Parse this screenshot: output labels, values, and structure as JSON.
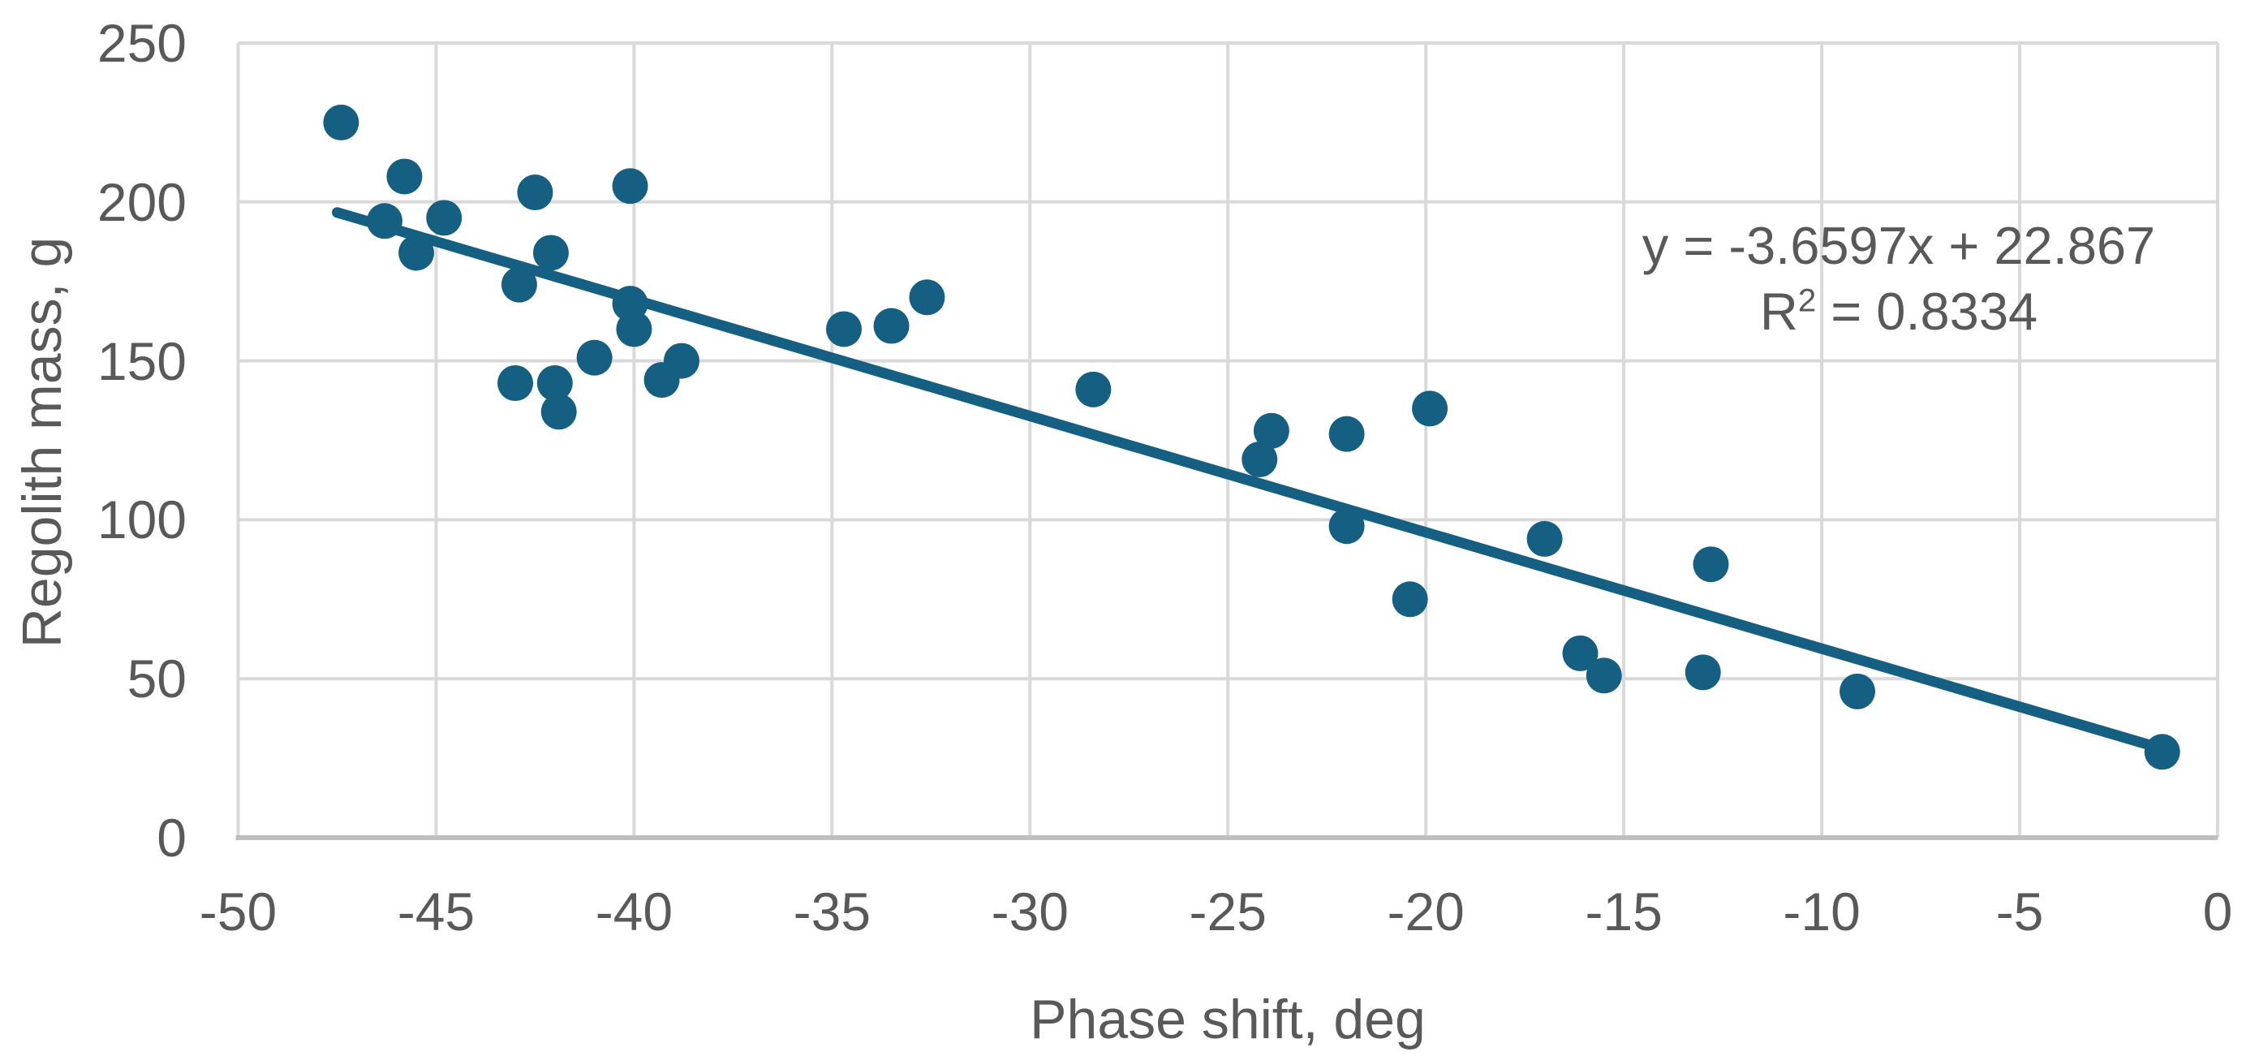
{
  "chart_data": {
    "type": "scatter",
    "title": "",
    "xlabel": "Phase shift, deg",
    "ylabel": "Regolith mass, g",
    "xlim": [
      -50,
      0
    ],
    "ylim": [
      0,
      250
    ],
    "grid": true,
    "legend": "none",
    "x_axis": {
      "ticks": [
        {
          "value": -50,
          "label": "-50"
        },
        {
          "value": -45,
          "label": "-45"
        },
        {
          "value": -40,
          "label": "-40"
        },
        {
          "value": -35,
          "label": "-35"
        },
        {
          "value": -30,
          "label": "-30"
        },
        {
          "value": -25,
          "label": "-25"
        },
        {
          "value": -20,
          "label": "-20"
        },
        {
          "value": -15,
          "label": "-15"
        },
        {
          "value": -10,
          "label": "-10"
        },
        {
          "value": -5,
          "label": "-5"
        },
        {
          "value": 0,
          "label": "0"
        }
      ]
    },
    "y_axis": {
      "ticks": [
        {
          "value": 0,
          "label": "0"
        },
        {
          "value": 50,
          "label": "50"
        },
        {
          "value": 100,
          "label": "100"
        },
        {
          "value": 150,
          "label": "150"
        },
        {
          "value": 200,
          "label": "200"
        },
        {
          "value": 250,
          "label": "250"
        }
      ]
    },
    "points": [
      [
        -47.4,
        225
      ],
      [
        -45.8,
        208
      ],
      [
        -46.3,
        194
      ],
      [
        -44.8,
        195
      ],
      [
        -45.5,
        184
      ],
      [
        -42.5,
        203
      ],
      [
        -40.1,
        205
      ],
      [
        -42.9,
        174
      ],
      [
        -42.1,
        184
      ],
      [
        -40.1,
        168
      ],
      [
        -40.0,
        160
      ],
      [
        -41.0,
        151
      ],
      [
        -39.3,
        144
      ],
      [
        -38.8,
        150
      ],
      [
        -43.0,
        143
      ],
      [
        -42.0,
        143
      ],
      [
        -41.9,
        134
      ],
      [
        -34.7,
        160
      ],
      [
        -33.5,
        161
      ],
      [
        -32.6,
        170
      ],
      [
        -28.4,
        141
      ],
      [
        -23.9,
        128
      ],
      [
        -24.2,
        119
      ],
      [
        -22.0,
        127
      ],
      [
        -22.0,
        98
      ],
      [
        -19.9,
        135
      ],
      [
        -20.4,
        75
      ],
      [
        -17.0,
        94
      ],
      [
        -16.1,
        58
      ],
      [
        -15.5,
        51
      ],
      [
        -12.8,
        86
      ],
      [
        -13.0,
        52
      ],
      [
        -9.1,
        46
      ],
      [
        -1.4,
        27
      ]
    ],
    "trendline": {
      "slope": -3.6597,
      "intercept": 22.867,
      "x_start": -47.5,
      "x_end": -1.35,
      "equation": "y = -3.6597x + 22.867",
      "r2_base": "R",
      "r2_sup": "2",
      "r2_rest": " = 0.8334"
    }
  },
  "colors": {
    "marker": "#156082",
    "trendline": "#156082",
    "gridline": "#D9D9D9",
    "axis_line": "#BFBFBF",
    "text": "#595959",
    "background": "#FFFFFF"
  }
}
